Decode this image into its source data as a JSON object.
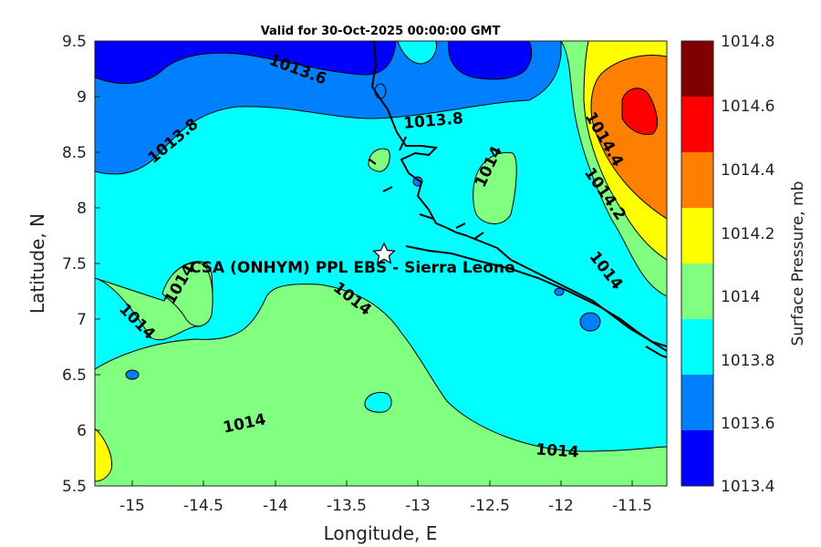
{
  "title": "Valid for 30-Oct-2025 00:00:00 GMT",
  "xlabel": "Longitude, E",
  "ylabel": "Latitude, N",
  "colorbar_label": "Surface Pressure, mb",
  "x_ticks": [
    "-15",
    "-14.5",
    "-14",
    "-13.5",
    "-13",
    "-12.5",
    "-12",
    "-11.5"
  ],
  "y_ticks": [
    "9.5",
    "9",
    "8.5",
    "8",
    "7.5",
    "7",
    "6.5",
    "6",
    "5.5"
  ],
  "colorbar_ticks": [
    "1014.8",
    "1014.6",
    "1014.4",
    "1014.2",
    "1014",
    "1013.8",
    "1013.6",
    "1013.4"
  ],
  "site_label": "CSA (ONHYM) PPL EBS  - Sierra Leone",
  "site_marker": "star-icon",
  "contour_labels": [
    "1013.6",
    "1013.8",
    "1013.8",
    "1014",
    "1014.4",
    "1014.2",
    "1014",
    "1014",
    "1014",
    "1014",
    "1014",
    "1014"
  ],
  "colors": {
    "1013.4-1013.6": "#0000ff",
    "1013.6-1013.8": "#0080ff",
    "1013.8-1014": "#00ffff",
    "1014-1014.2": "#80ff80",
    "1014.2-1014.4": "#ffff00",
    "1014.4-1014.6": "#ff8000",
    "1014.6-1014.8": "#ff0000",
    "1014.8+": "#800000"
  },
  "chart_data": {
    "type": "contour-map",
    "variable": "Surface Pressure, mb",
    "xlim": [
      -15.25,
      -11.25
    ],
    "ylim": [
      5.5,
      9.5
    ],
    "levels": [
      1013.4,
      1013.6,
      1013.8,
      1014,
      1014.2,
      1014.4,
      1014.6,
      1014.8
    ],
    "site": {
      "name": "CSA (ONHYM) PPL EBS  - Sierra Leone",
      "lon": -13.25,
      "lat": 7.6
    },
    "features": [
      {
        "region": "northwest corner",
        "range": "1013.4-1013.6"
      },
      {
        "region": "north band",
        "range": "1013.6-1013.8"
      },
      {
        "region": "central",
        "range": "1013.8-1014"
      },
      {
        "region": "south and southwest",
        "range": "1014-1014.2"
      },
      {
        "region": "northeast",
        "range": "1014.2-1014.6"
      },
      {
        "region": "northeast core",
        "range": "1014.6-1014.8"
      }
    ]
  }
}
